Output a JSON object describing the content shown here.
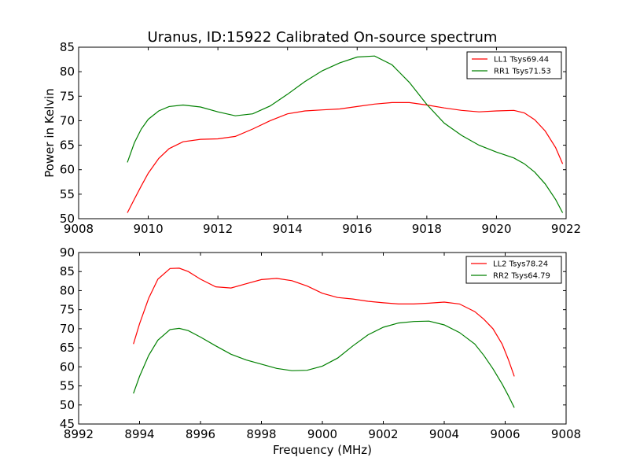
{
  "figure": {
    "title": "Uranus, ID:15922 Calibrated On-source spectrum",
    "xlabel": "Frequency (MHz)",
    "ylabel": "Power in Kelvin"
  },
  "chart_data": [
    {
      "type": "line",
      "title": "Uranus, ID:15922 Calibrated On-source spectrum",
      "xlabel": "",
      "ylabel": "Power in Kelvin",
      "xlim": [
        9008,
        9022
      ],
      "ylim": [
        50,
        85
      ],
      "xticks": [
        9008,
        9010,
        9012,
        9014,
        9016,
        9018,
        9020,
        9022
      ],
      "yticks": [
        50,
        55,
        60,
        65,
        70,
        75,
        80,
        85
      ],
      "legend": "top-right",
      "grid": false,
      "series": [
        {
          "name": "LL1 Tsys69.44",
          "color": "#ff0000",
          "x": [
            9009.4,
            9009.6,
            9009.8,
            9010.0,
            9010.3,
            9010.6,
            9011.0,
            9011.5,
            9012.0,
            9012.5,
            9013.0,
            9013.5,
            9014.0,
            9014.5,
            9015.0,
            9015.5,
            9016.0,
            9016.5,
            9017.0,
            9017.5,
            9018.0,
            9018.5,
            9019.0,
            9019.5,
            9020.0,
            9020.5,
            9020.8,
            9021.1,
            9021.4,
            9021.7,
            9021.9
          ],
          "values": [
            51.2,
            54.0,
            56.7,
            59.3,
            62.3,
            64.3,
            65.7,
            66.2,
            66.3,
            66.8,
            68.3,
            70.0,
            71.4,
            72.0,
            72.2,
            72.4,
            72.9,
            73.4,
            73.7,
            73.7,
            73.2,
            72.6,
            72.1,
            71.8,
            72.0,
            72.1,
            71.6,
            70.2,
            67.9,
            64.5,
            61.2
          ]
        },
        {
          "name": "RR1 Tsys71.53",
          "color": "#008000",
          "x": [
            9009.4,
            9009.6,
            9009.8,
            9010.0,
            9010.3,
            9010.6,
            9011.0,
            9011.5,
            9012.0,
            9012.5,
            9013.0,
            9013.5,
            9014.0,
            9014.5,
            9015.0,
            9015.5,
            9016.0,
            9016.5,
            9017.0,
            9017.5,
            9018.0,
            9018.5,
            9019.0,
            9019.5,
            9020.0,
            9020.5,
            9020.8,
            9021.1,
            9021.4,
            9021.7,
            9021.9
          ],
          "values": [
            61.5,
            65.5,
            68.3,
            70.3,
            72.0,
            72.9,
            73.2,
            72.8,
            71.8,
            71.0,
            71.4,
            73.0,
            75.4,
            78.0,
            80.2,
            81.8,
            83.0,
            83.2,
            81.4,
            77.8,
            73.3,
            69.5,
            67.0,
            65.0,
            63.6,
            62.4,
            61.2,
            59.5,
            57.1,
            53.9,
            51.2
          ]
        }
      ]
    },
    {
      "type": "line",
      "title": "",
      "xlabel": "Frequency (MHz)",
      "ylabel": "",
      "xlim": [
        8992,
        9008
      ],
      "ylim": [
        45,
        90
      ],
      "xticks": [
        8992,
        8994,
        8996,
        8998,
        9000,
        9002,
        9004,
        9006,
        9008
      ],
      "yticks": [
        45,
        50,
        55,
        60,
        65,
        70,
        75,
        80,
        85,
        90
      ],
      "legend": "top-right",
      "grid": false,
      "series": [
        {
          "name": "LL2 Tsys78.24",
          "color": "#ff0000",
          "x": [
            8993.8,
            8994.0,
            8994.3,
            8994.6,
            8995.0,
            8995.3,
            8995.6,
            8996.0,
            8996.5,
            8997.0,
            8997.5,
            8998.0,
            8998.5,
            8999.0,
            8999.5,
            9000.0,
            9000.5,
            9001.0,
            9001.5,
            9002.0,
            9002.5,
            9003.0,
            9003.5,
            9004.0,
            9004.5,
            9005.0,
            9005.3,
            9005.6,
            9005.9,
            9006.1,
            9006.3
          ],
          "values": [
            66.0,
            71.3,
            78.0,
            83.0,
            85.8,
            85.9,
            85.0,
            83.0,
            81.0,
            80.7,
            81.8,
            82.9,
            83.2,
            82.6,
            81.2,
            79.3,
            78.2,
            77.8,
            77.2,
            76.8,
            76.5,
            76.5,
            76.7,
            77.0,
            76.5,
            74.5,
            72.5,
            70.0,
            66.0,
            62.0,
            57.5
          ]
        },
        {
          "name": "RR2 Tsys64.79",
          "color": "#008000",
          "x": [
            8993.8,
            8994.0,
            8994.3,
            8994.6,
            8995.0,
            8995.3,
            8995.6,
            8996.0,
            8996.5,
            8997.0,
            8997.5,
            8998.0,
            8998.5,
            8999.0,
            8999.5,
            9000.0,
            9000.5,
            9001.0,
            9001.5,
            9002.0,
            9002.5,
            9003.0,
            9003.5,
            9004.0,
            9004.5,
            9005.0,
            9005.3,
            9005.6,
            9005.9,
            9006.1,
            9006.3
          ],
          "values": [
            53.0,
            57.5,
            63.0,
            67.0,
            69.8,
            70.1,
            69.5,
            67.8,
            65.5,
            63.3,
            61.8,
            60.7,
            59.6,
            59.0,
            59.1,
            60.2,
            62.3,
            65.5,
            68.4,
            70.4,
            71.5,
            71.9,
            72.0,
            71.0,
            69.0,
            66.0,
            63.0,
            59.5,
            55.5,
            52.5,
            49.3
          ]
        }
      ]
    }
  ]
}
